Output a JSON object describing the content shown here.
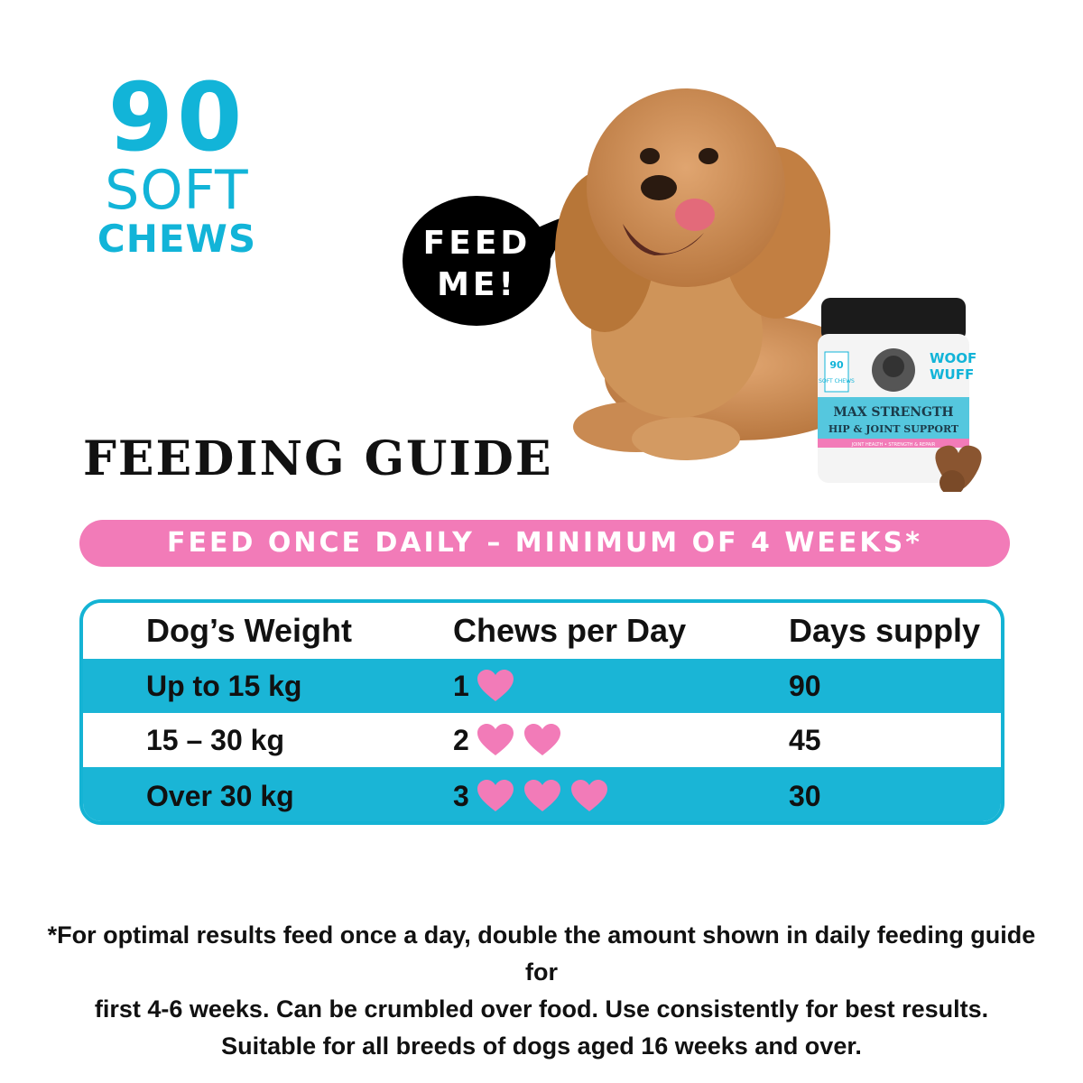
{
  "promo": {
    "count": "90",
    "unit_line1": "SOFT",
    "unit_line2": "CHEWS"
  },
  "speech_bubble": {
    "line1": "FEED",
    "line2": "ME!"
  },
  "product": {
    "brand_line1": "WOOF",
    "brand_line2": "WUFF",
    "name_line1": "MAX STRENGTH",
    "name_line2": "HIP & JOINT SUPPORT",
    "tagline": "JOINT HEALTH • STRENGTH & REPAIR",
    "badge_count": "90",
    "badge_text": "SOFT CHEWS"
  },
  "guide": {
    "title": "FEEDING GUIDE",
    "banner": "FEED ONCE DAILY – MINIMUM OF 4 WEEKS*",
    "headers": {
      "weight": "Dog’s Weight",
      "chews": "Chews per Day",
      "days": "Days supply"
    },
    "rows": [
      {
        "weight": "Up to 15 kg",
        "chews": "1",
        "hearts": 1,
        "days": "90"
      },
      {
        "weight": "15 – 30 kg",
        "chews": "2",
        "hearts": 2,
        "days": "45"
      },
      {
        "weight": "Over 30 kg",
        "chews": "3",
        "hearts": 3,
        "days": "30"
      }
    ]
  },
  "footnote": {
    "line1": "*For optimal results feed once a day, double the amount shown in daily feeding guide for",
    "line2": "first 4-6 weeks. Can be crumbled over food. Use consistently for best results.",
    "line3": "Suitable for all breeds of dogs aged 16 weeks and over."
  },
  "colors": {
    "accent_blue": "#1ab5d6",
    "accent_pink": "#f27bb8",
    "bubble": "#000000"
  }
}
